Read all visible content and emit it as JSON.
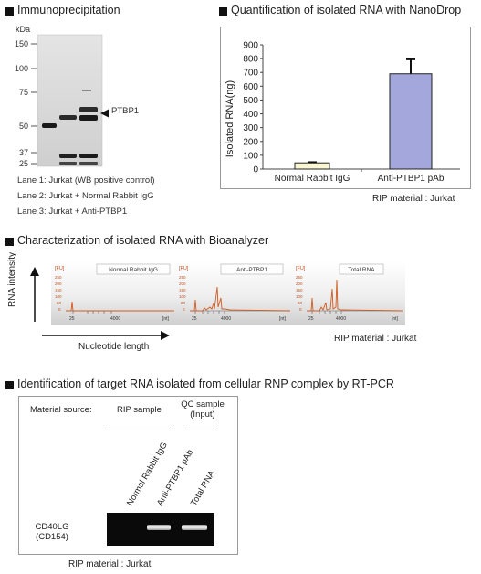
{
  "panels": {
    "ip": {
      "title": "Immunoprecipitation",
      "kda_label": "kDa",
      "markers": [
        "150",
        "100",
        "75",
        "50",
        "37",
        "25"
      ],
      "band_label": "PTBP1",
      "lanes": [
        "Lane 1: Jurkat (WB positive control)",
        "Lane 2: Jurkat + Normal Rabbit IgG",
        "Lane 3: Jurkat + Anti-PTBP1"
      ]
    },
    "nanodrop": {
      "title": "Quantification of isolated RNA with NanoDrop",
      "footnote": "RIP material : Jurkat"
    },
    "bioanalyzer": {
      "title": "Characterization of isolated RNA with Bioanalyzer",
      "y_axis_label": "RNA intensity",
      "x_axis_label": "Nucleotide length",
      "footnote": "RIP material : Jurkat",
      "trace_titles": [
        "Normal Rabbit IgG",
        "Anti-PTBP1",
        "Total RNA"
      ],
      "trace_unit_y": "[FU]",
      "trace_unit_x": "[nt]",
      "trace_yticks": [
        "250",
        "200",
        "150",
        "100",
        "50",
        "0"
      ],
      "trace_xticks": [
        "25",
        "4000"
      ]
    },
    "rtpcr": {
      "title": "Identification of target RNA isolated from cellular RNP complex by RT-PCR",
      "material_source": "Material source:",
      "rip_sample": "RIP sample",
      "qc_sample_line1": "QC sample",
      "qc_sample_line2": "(Input)",
      "lane_labels": [
        "Normal Rabbit IgG",
        "Anti-PTBP1 pAb",
        "Total RNA"
      ],
      "gene_line1": "CD40LG",
      "gene_line2": "(CD154)",
      "footnote": "RIP material : Jurkat"
    }
  },
  "chart_data": {
    "type": "bar",
    "categories": [
      "Normal Rabbit IgG",
      "Anti-PTBP1 pAb"
    ],
    "values": [
      45,
      690
    ],
    "errors": [
      5,
      105
    ],
    "ylabel": "Isolated RNA(ng)",
    "ylim": [
      0,
      900
    ],
    "yticks": [
      0,
      100,
      200,
      300,
      400,
      500,
      600,
      700,
      800,
      900
    ],
    "bar_colors": [
      "#faf7d2",
      "#a3a7dc"
    ]
  }
}
